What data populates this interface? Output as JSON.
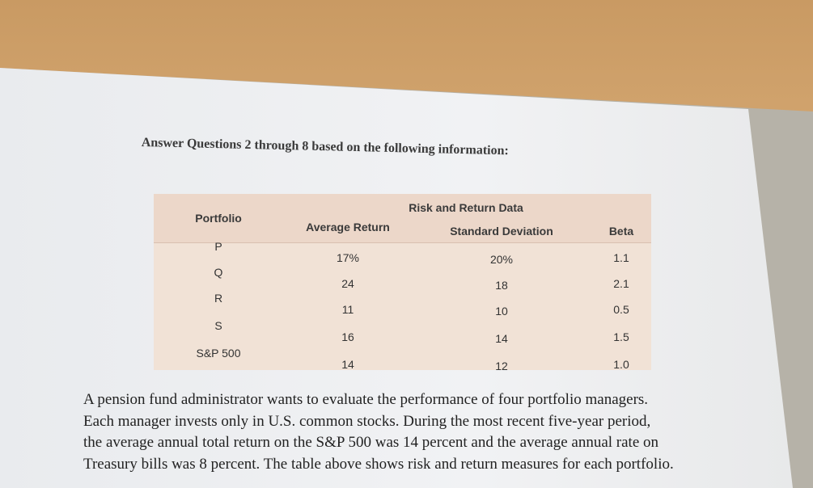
{
  "heading": "Answer Questions 2 through 8 based on the following information:",
  "table": {
    "caption": "Risk and Return Data",
    "headers": [
      "Portfolio",
      "Average Return",
      "Standard Deviation",
      "Beta"
    ],
    "rows": [
      [
        "P",
        "17%",
        "20%",
        "1.1"
      ],
      [
        "Q",
        "24",
        "18",
        "2.1"
      ],
      [
        "R",
        "11",
        "10",
        "0.5"
      ],
      [
        "S",
        "16",
        "14",
        "1.5"
      ],
      [
        "S&P 500",
        "14",
        "12",
        "1.0"
      ]
    ]
  },
  "paragraph": [
    "A pension fund administrator wants to evaluate the performance of four portfolio managers.",
    "Each manager invests only in U.S. common stocks. During the most recent five-year period,",
    "the average annual total return on the S&P 500 was 14 percent and the average annual rate on",
    "Treasury bills was 8 percent. The table above shows risk and return measures for each portfolio."
  ]
}
